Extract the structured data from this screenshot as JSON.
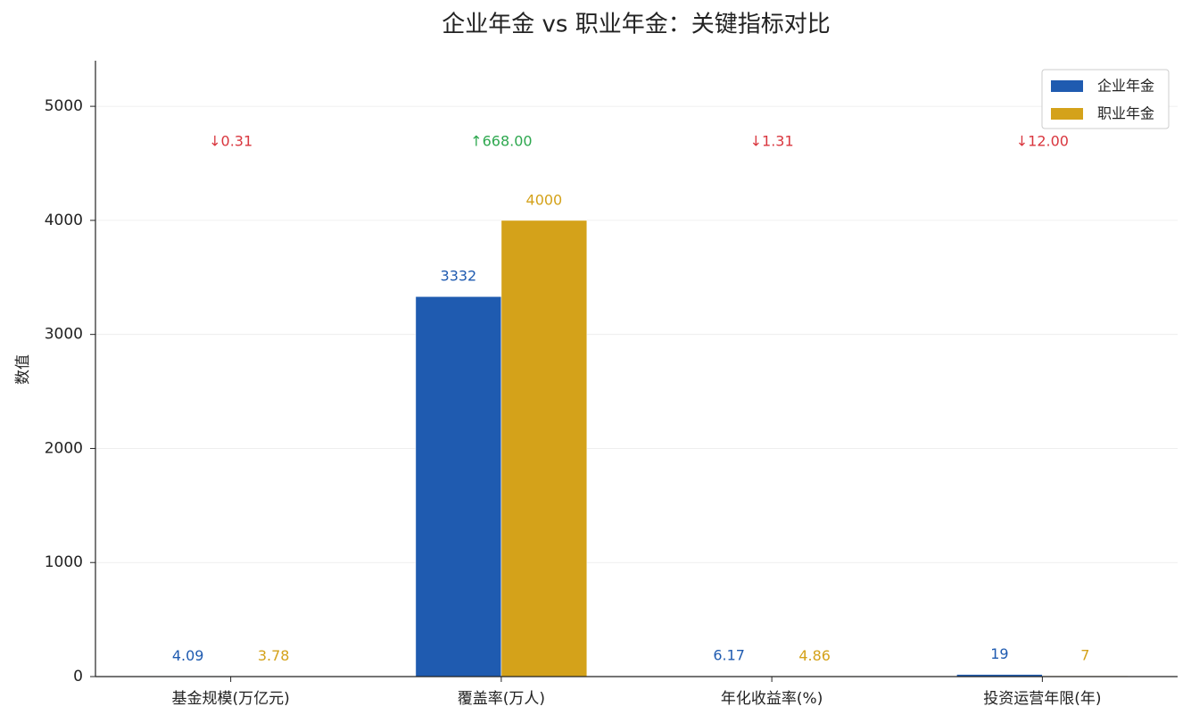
{
  "chart_data": {
    "type": "bar",
    "title": "企业年金 vs 职业年金：关键指标对比",
    "y_label": "数值",
    "categories": [
      "基金规模(万亿元)",
      "覆盖率(万人)",
      "年化收益率(%)",
      "投资运营年限(年)"
    ],
    "series": [
      {
        "name": "企业年金",
        "color": "#1f5bb0",
        "values": [
          4.09,
          3332,
          6.17,
          19
        ]
      },
      {
        "name": "职业年金",
        "color": "#d4a21a",
        "values": [
          3.78,
          4000,
          4.86,
          7
        ]
      }
    ],
    "annotations": [
      {
        "text": "↓0.31",
        "color": "#d9363e"
      },
      {
        "text": "↑668.00",
        "color": "#2ea84f"
      },
      {
        "text": "↓1.31",
        "color": "#d9363e"
      },
      {
        "text": "↓12.00",
        "color": "#d9363e"
      }
    ],
    "ylim": [
      0,
      5400
    ],
    "yticks": [
      0,
      1000,
      2000,
      3000,
      4000,
      5000
    ],
    "grid": true,
    "legend": "upper right"
  }
}
